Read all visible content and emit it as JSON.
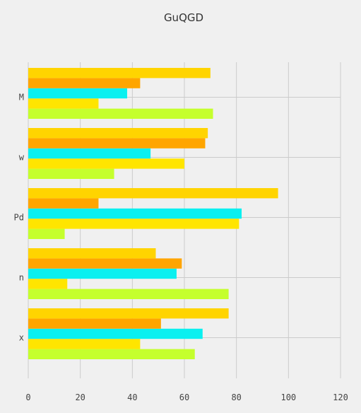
{
  "chart_data": {
    "type": "bar",
    "orientation": "horizontal",
    "title": "GuQGD",
    "xlabel": "",
    "ylabel": "",
    "categories": [
      "x",
      "n",
      "Pd",
      "w",
      "M"
    ],
    "xlim": [
      0,
      120
    ],
    "xticks": [
      0,
      20,
      40,
      60,
      80,
      100,
      120
    ],
    "grid": true,
    "legend": "none",
    "series": [
      {
        "color": "#c5ff2d",
        "values": [
          64,
          77,
          14,
          33,
          71
        ]
      },
      {
        "color": "#ffe500",
        "values": [
          43,
          15,
          81,
          60,
          27
        ]
      },
      {
        "color": "#0af0f0",
        "values": [
          67,
          57,
          82,
          47,
          38
        ]
      },
      {
        "color": "#ffa500",
        "values": [
          51,
          59,
          27,
          68,
          43
        ]
      },
      {
        "color": "#ffd400",
        "values": [
          77,
          49,
          96,
          69,
          70
        ]
      }
    ]
  }
}
